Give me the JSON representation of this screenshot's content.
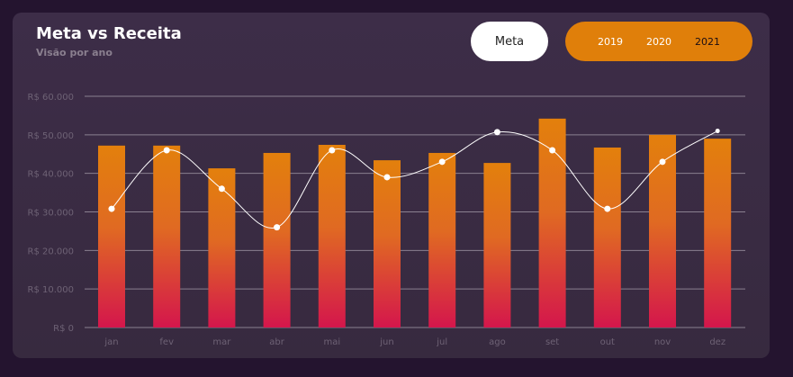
{
  "header": {
    "title": "Meta vs Receita",
    "subtitle": "Visão por ano"
  },
  "controls": {
    "meta_label": "Meta",
    "years": [
      "2019",
      "2020",
      "2021"
    ],
    "active_year": "2021",
    "accent": "#e07f0a"
  },
  "chart_data": {
    "type": "bar",
    "categories": [
      "jan",
      "fev",
      "mar",
      "abr",
      "mai",
      "jun",
      "jul",
      "ago",
      "set",
      "out",
      "nov",
      "dez"
    ],
    "series": [
      {
        "type": "bar",
        "values": [
          47200,
          47200,
          41300,
          45300,
          47400,
          43400,
          45300,
          42700,
          54200,
          46700,
          50000,
          49000
        ],
        "color_top": "#e3800c",
        "color_bottom": "#d4164c"
      },
      {
        "type": "line",
        "values": [
          30800,
          46000,
          36000,
          26000,
          46000,
          39000,
          43000,
          50700,
          46000,
          30800,
          43000,
          51000
        ],
        "color": "#ffffff"
      }
    ],
    "yticks": [
      "R$ 0",
      "R$ 10.000",
      "R$ 20.000",
      "R$ 30.000",
      "R$ 40.000",
      "R$ 50.000",
      "R$ 60.000"
    ],
    "ylim": [
      0,
      60000
    ],
    "grid": true
  }
}
